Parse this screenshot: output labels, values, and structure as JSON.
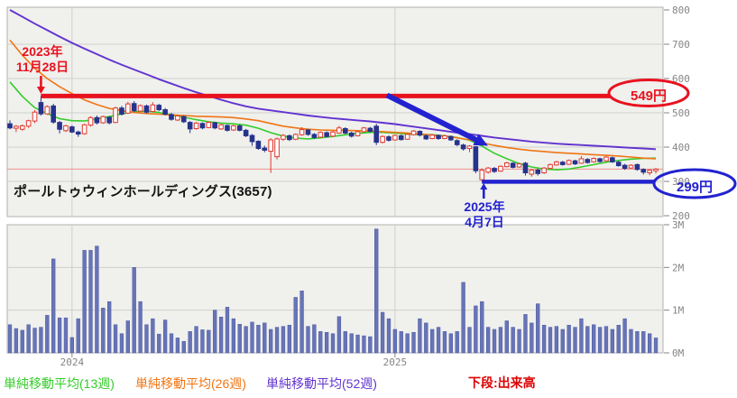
{
  "title": {
    "text": "ポールトゥウィンホールディングス(3657)"
  },
  "legend": {
    "items": [
      {
        "label": "単純移動平均(13週)",
        "color": "#35cc2a"
      },
      {
        "label": "単純移動平均(26週)",
        "color": "#ef7514"
      },
      {
        "label": "単純移動平均(52週)",
        "color": "#6134cf"
      }
    ],
    "note": {
      "text": "下段:出来高",
      "color": "#dd0000"
    }
  },
  "colors": {
    "plot_bg": "#f0f0ed",
    "plot_border": "#b0b0ab",
    "grid": "#cfcfca",
    "axis_text": "#858585",
    "candle_up_stroke": "#e0392f",
    "candle_up_fill": "#ffffff",
    "candle_down": "#26338c",
    "volume_fill": "#6774b6",
    "volume_stroke": "#4c59a4",
    "reference_line": "#f0908a",
    "annotation_red": "#e8121f",
    "annotation_blue": "#2222cf"
  },
  "chart_data": {
    "type": "candlestick",
    "title": "ポールトゥウィンホールディングス(3657)",
    "subtitle_note": "weekly chart, upper pane price / lower pane volume",
    "price_axis": {
      "min": 200,
      "max": 800,
      "ticks": [
        800,
        700,
        600,
        500,
        400,
        300,
        200
      ]
    },
    "volume_axis": {
      "min": 0,
      "max_millions": 3,
      "ticks": [
        3,
        2,
        1,
        0
      ],
      "tick_labels": [
        "3M",
        "2M",
        "1M",
        "0M"
      ]
    },
    "x_axis": {
      "tick_labels": [
        "2024",
        "2025"
      ],
      "tick_weeks": [
        10,
        62
      ]
    },
    "weeks": 105,
    "candles": [
      [
        468,
        478,
        452,
        456,
        0.66
      ],
      [
        455,
        464,
        444,
        461,
        0.57
      ],
      [
        452,
        466,
        448,
        462,
        0.53
      ],
      [
        461,
        480,
        456,
        477,
        0.66
      ],
      [
        476,
        508,
        470,
        502,
        0.58
      ],
      [
        530,
        549,
        492,
        497,
        0.6
      ],
      [
        497,
        522,
        494,
        518,
        0.88
      ],
      [
        520,
        526,
        468,
        473,
        2.2
      ],
      [
        472,
        476,
        440,
        452,
        0.82
      ],
      [
        448,
        465,
        444,
        462,
        0.82
      ],
      [
        459,
        463,
        441,
        444,
        0.36
      ],
      [
        444,
        448,
        430,
        438,
        0.8
      ],
      [
        439,
        468,
        436,
        465,
        2.4
      ],
      [
        464,
        490,
        460,
        486,
        2.4
      ],
      [
        486,
        492,
        466,
        471,
        2.5
      ],
      [
        471,
        492,
        468,
        489,
        1.05
      ],
      [
        487,
        490,
        466,
        471,
        1.2
      ],
      [
        472,
        518,
        470,
        514,
        0.66
      ],
      [
        514,
        520,
        492,
        496,
        0.45
      ],
      [
        499,
        532,
        497,
        526,
        0.75
      ],
      [
        527,
        534,
        502,
        506,
        2.0
      ],
      [
        505,
        524,
        503,
        521,
        1.2
      ],
      [
        520,
        524,
        498,
        502,
        0.66
      ],
      [
        504,
        531,
        502,
        523,
        0.8
      ],
      [
        522,
        526,
        505,
        509,
        0.44
      ],
      [
        509,
        514,
        492,
        496,
        0.77
      ],
      [
        495,
        500,
        477,
        481,
        0.45
      ],
      [
        479,
        494,
        476,
        491,
        0.35
      ],
      [
        489,
        493,
        470,
        474,
        0.27
      ],
      [
        472,
        476,
        441,
        453,
        0.5
      ],
      [
        454,
        473,
        451,
        470,
        0.62
      ],
      [
        469,
        472,
        452,
        456,
        0.54
      ],
      [
        457,
        475,
        455,
        472,
        0.53
      ],
      [
        471,
        474,
        452,
        456,
        1.0
      ],
      [
        453,
        468,
        450,
        465,
        0.84
      ],
      [
        463,
        466,
        445,
        449,
        1.07
      ],
      [
        450,
        465,
        447,
        462,
        0.8
      ],
      [
        462,
        466,
        446,
        449,
        0.67
      ],
      [
        449,
        453,
        429,
        433,
        0.62
      ],
      [
        434,
        438,
        404,
        416,
        0.72
      ],
      [
        417,
        420,
        392,
        396,
        0.65
      ],
      [
        397,
        404,
        385,
        391,
        0.7
      ],
      [
        388,
        426,
        325,
        421,
        0.55
      ],
      [
        372,
        428,
        364,
        424,
        0.6
      ],
      [
        423,
        438,
        418,
        434,
        0.62
      ],
      [
        433,
        437,
        418,
        422,
        0.65
      ],
      [
        423,
        440,
        420,
        437,
        1.3
      ],
      [
        436,
        458,
        433,
        451,
        1.45
      ],
      [
        450,
        453,
        433,
        437,
        0.62
      ],
      [
        437,
        441,
        424,
        428,
        0.66
      ],
      [
        429,
        446,
        427,
        443,
        0.5
      ],
      [
        442,
        446,
        428,
        431,
        0.48
      ],
      [
        432,
        447,
        430,
        444,
        0.45
      ],
      [
        441,
        462,
        439,
        456,
        0.85
      ],
      [
        454,
        458,
        438,
        441,
        0.5
      ],
      [
        441,
        445,
        428,
        432,
        0.45
      ],
      [
        433,
        448,
        431,
        445,
        0.42
      ],
      [
        445,
        459,
        443,
        456,
        0.4
      ],
      [
        455,
        459,
        443,
        446,
        0.38
      ],
      [
        461,
        468,
        406,
        414,
        2.9
      ],
      [
        414,
        434,
        411,
        431,
        0.95
      ],
      [
        430,
        434,
        416,
        420,
        0.8
      ],
      [
        421,
        437,
        419,
        434,
        0.55
      ],
      [
        433,
        437,
        419,
        422,
        0.5
      ],
      [
        423,
        439,
        421,
        437,
        0.45
      ],
      [
        436,
        450,
        434,
        447,
        0.48
      ],
      [
        446,
        449,
        431,
        435,
        0.8
      ],
      [
        433,
        437,
        421,
        424,
        0.7
      ],
      [
        425,
        438,
        423,
        435,
        0.55
      ],
      [
        434,
        437,
        421,
        425,
        0.6
      ],
      [
        425,
        436,
        423,
        433,
        0.5
      ],
      [
        431,
        434,
        418,
        421,
        0.45
      ],
      [
        419,
        423,
        403,
        407,
        0.5
      ],
      [
        406,
        410,
        390,
        395,
        1.65
      ],
      [
        396,
        406,
        385,
        403,
        0.6
      ],
      [
        401,
        403,
        324,
        331,
        1.1
      ],
      [
        305,
        338,
        299,
        333,
        1.2
      ],
      [
        327,
        342,
        323,
        339,
        0.6
      ],
      [
        338,
        342,
        325,
        329,
        0.55
      ],
      [
        330,
        347,
        328,
        344,
        0.6
      ],
      [
        343,
        357,
        341,
        354,
        0.75
      ],
      [
        353,
        356,
        338,
        341,
        0.6
      ],
      [
        342,
        354,
        340,
        351,
        0.55
      ],
      [
        353,
        357,
        317,
        325,
        0.9
      ],
      [
        321,
        336,
        314,
        333,
        0.7
      ],
      [
        333,
        337,
        317,
        323,
        1.15
      ],
      [
        325,
        342,
        322,
        339,
        0.65
      ],
      [
        338,
        352,
        336,
        349,
        0.6
      ],
      [
        348,
        360,
        346,
        357,
        0.62
      ],
      [
        356,
        360,
        346,
        349,
        0.55
      ],
      [
        350,
        364,
        348,
        361,
        0.65
      ],
      [
        360,
        363,
        348,
        351,
        0.6
      ],
      [
        353,
        374,
        351,
        366,
        0.8
      ],
      [
        364,
        368,
        352,
        355,
        0.62
      ],
      [
        357,
        370,
        355,
        367,
        0.66
      ],
      [
        366,
        369,
        355,
        358,
        0.6
      ],
      [
        360,
        374,
        358,
        371,
        0.62
      ],
      [
        369,
        372,
        354,
        357,
        0.55
      ],
      [
        356,
        360,
        343,
        346,
        0.65
      ],
      [
        347,
        351,
        334,
        338,
        0.8
      ],
      [
        339,
        350,
        337,
        347,
        0.55
      ],
      [
        349,
        352,
        331,
        335,
        0.5
      ],
      [
        335,
        338,
        320,
        327,
        0.5
      ],
      [
        325,
        336,
        318,
        333,
        0.45
      ],
      [
        331,
        339,
        323,
        336,
        0.35
      ]
    ],
    "moving_averages": [
      {
        "name": "単純移動平均(13週)",
        "weeks": 13,
        "color": "#35cc2a",
        "points": [
          [
            0,
            590
          ],
          [
            2,
            548
          ],
          [
            4,
            515
          ],
          [
            6,
            498
          ],
          [
            8,
            483
          ],
          [
            10,
            477
          ],
          [
            12,
            476
          ],
          [
            14,
            482
          ],
          [
            16,
            489
          ],
          [
            18,
            497
          ],
          [
            20,
            503
          ],
          [
            22,
            505
          ],
          [
            24,
            501
          ],
          [
            26,
            494
          ],
          [
            28,
            487
          ],
          [
            30,
            480
          ],
          [
            32,
            474
          ],
          [
            34,
            470
          ],
          [
            36,
            468
          ],
          [
            38,
            464
          ],
          [
            40,
            455
          ],
          [
            42,
            442
          ],
          [
            44,
            432
          ],
          [
            46,
            426
          ],
          [
            48,
            424
          ],
          [
            50,
            427
          ],
          [
            52,
            431
          ],
          [
            54,
            436
          ],
          [
            56,
            440
          ],
          [
            58,
            443
          ],
          [
            60,
            443
          ],
          [
            62,
            441
          ],
          [
            64,
            438
          ],
          [
            66,
            437
          ],
          [
            68,
            436
          ],
          [
            70,
            433
          ],
          [
            72,
            428
          ],
          [
            74,
            420
          ],
          [
            76,
            403
          ],
          [
            78,
            382
          ],
          [
            80,
            366
          ],
          [
            82,
            352
          ],
          [
            84,
            342
          ],
          [
            86,
            336
          ],
          [
            88,
            334
          ],
          [
            90,
            336
          ],
          [
            92,
            342
          ],
          [
            94,
            349
          ],
          [
            96,
            356
          ],
          [
            98,
            361
          ],
          [
            100,
            365
          ],
          [
            102,
            367
          ],
          [
            104,
            368
          ]
        ]
      },
      {
        "name": "単純移動平均(26週)",
        "weeks": 26,
        "color": "#ef7514",
        "points": [
          [
            0,
            712
          ],
          [
            2,
            668
          ],
          [
            4,
            630
          ],
          [
            6,
            600
          ],
          [
            8,
            576
          ],
          [
            10,
            556
          ],
          [
            12,
            538
          ],
          [
            14,
            524
          ],
          [
            16,
            513
          ],
          [
            18,
            506
          ],
          [
            20,
            501
          ],
          [
            22,
            498
          ],
          [
            24,
            496
          ],
          [
            26,
            494
          ],
          [
            28,
            492
          ],
          [
            30,
            490
          ],
          [
            32,
            489
          ],
          [
            34,
            488
          ],
          [
            36,
            486
          ],
          [
            38,
            482
          ],
          [
            40,
            477
          ],
          [
            42,
            469
          ],
          [
            44,
            461
          ],
          [
            46,
            456
          ],
          [
            48,
            452
          ],
          [
            50,
            450
          ],
          [
            52,
            449
          ],
          [
            54,
            449
          ],
          [
            56,
            448
          ],
          [
            58,
            447
          ],
          [
            60,
            445
          ],
          [
            62,
            443
          ],
          [
            64,
            441
          ],
          [
            66,
            438
          ],
          [
            68,
            435
          ],
          [
            70,
            431
          ],
          [
            72,
            427
          ],
          [
            74,
            421
          ],
          [
            76,
            413
          ],
          [
            78,
            405
          ],
          [
            80,
            399
          ],
          [
            82,
            394
          ],
          [
            84,
            390
          ],
          [
            86,
            387
          ],
          [
            88,
            384
          ],
          [
            90,
            382
          ],
          [
            92,
            380
          ],
          [
            94,
            378
          ],
          [
            96,
            376
          ],
          [
            98,
            374
          ],
          [
            100,
            371
          ],
          [
            102,
            368
          ],
          [
            104,
            366
          ]
        ]
      },
      {
        "name": "単純移動平均(52週)",
        "weeks": 52,
        "color": "#6134cf",
        "points": [
          [
            0,
            800
          ],
          [
            2,
            780
          ],
          [
            4,
            760
          ],
          [
            6,
            741
          ],
          [
            8,
            722
          ],
          [
            10,
            704
          ],
          [
            12,
            687
          ],
          [
            14,
            671
          ],
          [
            16,
            655
          ],
          [
            18,
            640
          ],
          [
            20,
            626
          ],
          [
            22,
            612
          ],
          [
            24,
            598
          ],
          [
            26,
            585
          ],
          [
            28,
            572
          ],
          [
            30,
            560
          ],
          [
            32,
            549
          ],
          [
            34,
            538
          ],
          [
            36,
            528
          ],
          [
            38,
            519
          ],
          [
            40,
            512
          ],
          [
            42,
            507
          ],
          [
            44,
            502
          ],
          [
            46,
            497
          ],
          [
            48,
            492
          ],
          [
            50,
            488
          ],
          [
            52,
            484
          ],
          [
            54,
            481
          ],
          [
            56,
            478
          ],
          [
            58,
            475
          ],
          [
            60,
            471
          ],
          [
            62,
            467
          ],
          [
            64,
            462
          ],
          [
            66,
            457
          ],
          [
            68,
            452
          ],
          [
            70,
            447
          ],
          [
            72,
            442
          ],
          [
            74,
            438
          ],
          [
            76,
            433
          ],
          [
            78,
            428
          ],
          [
            80,
            424
          ],
          [
            82,
            420
          ],
          [
            84,
            416
          ],
          [
            86,
            413
          ],
          [
            88,
            410
          ],
          [
            90,
            408
          ],
          [
            92,
            406
          ],
          [
            94,
            404
          ],
          [
            96,
            402
          ],
          [
            98,
            400
          ],
          [
            100,
            398
          ],
          [
            102,
            396
          ],
          [
            104,
            394
          ]
        ]
      }
    ],
    "reference_line": {
      "price": 336
    },
    "annotations": {
      "high": {
        "price": 549,
        "week": 5,
        "label": "549円",
        "date_line1": "2023年",
        "date_line2": "11月28日"
      },
      "low": {
        "price": 299,
        "week": 76,
        "label": "299円",
        "date_line1": "2025年",
        "date_line2": "4月7日"
      }
    }
  }
}
